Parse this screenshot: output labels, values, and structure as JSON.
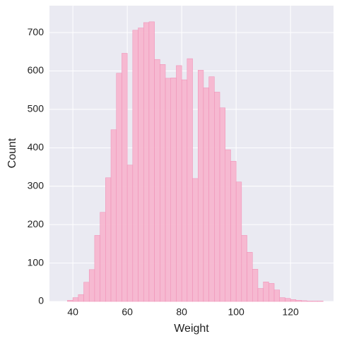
{
  "chart_data": {
    "type": "histogram",
    "x_label": "Weight",
    "y_label": "Count",
    "bins": [
      38,
      40,
      42,
      44,
      46,
      48,
      50,
      52,
      54,
      56,
      58,
      60,
      62,
      64,
      66,
      68,
      70,
      72,
      74,
      76,
      78,
      80,
      82,
      84,
      86,
      88,
      90,
      92,
      94,
      96,
      98,
      100,
      102,
      104,
      106,
      108,
      110,
      112,
      114,
      116,
      118,
      120,
      122,
      124,
      126,
      128,
      130,
      132
    ],
    "values": [
      3,
      10,
      18,
      50,
      83,
      172,
      232,
      322,
      447,
      594,
      646,
      355,
      706,
      712,
      726,
      728,
      630,
      617,
      581,
      582,
      614,
      577,
      632,
      320,
      602,
      556,
      585,
      545,
      504,
      395,
      365,
      311,
      172,
      128,
      84,
      34,
      51,
      47,
      30,
      10,
      8,
      5,
      3,
      2,
      1,
      1,
      1
    ],
    "color": "#f7b6cf",
    "edgecolor": "#f08cb4",
    "xlim": [
      31.4,
      135.8
    ],
    "xticks": [
      40,
      60,
      80,
      100,
      120
    ],
    "ylim": [
      0,
      770
    ],
    "yticks": [
      0,
      100,
      200,
      300,
      400,
      500,
      600,
      700
    ],
    "grid": true
  }
}
